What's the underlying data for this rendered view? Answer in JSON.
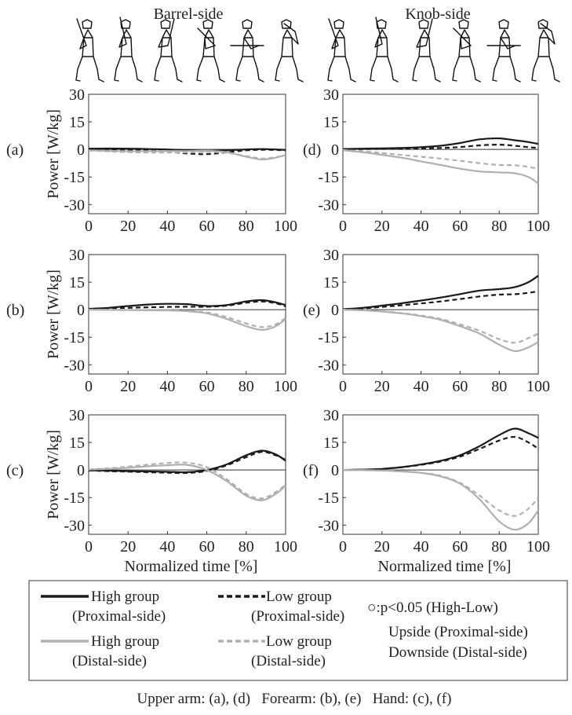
{
  "figure": {
    "column_titles": [
      "Barrel-side",
      "Knob-side"
    ],
    "footer": "Upper arm: (a), (d)   Forearm: (b), (e)   Hand: (c), (f)",
    "legend": {
      "items": [
        {
          "key": "high_prox",
          "line1": "High group",
          "line2": "(Proximal-side)",
          "color": "#1a1a1a",
          "dash": "solid"
        },
        {
          "key": "low_prox",
          "line1": "Low group",
          "line2": "(Proximal-side)",
          "color": "#1a1a1a",
          "dash": "dashed"
        },
        {
          "key": "high_dist",
          "line1": "High group",
          "line2": "(Distal-side)",
          "color": "#b0b0b0",
          "dash": "solid"
        },
        {
          "key": "low_dist",
          "line1": "Low group",
          "line2": "(Distal-side)",
          "color": "#b0b0b0",
          "dash": "dashed"
        }
      ],
      "sig_note": [
        "○:p<0.05 (High-Low)",
        "Upside (Proximal-side)",
        "Downside (Distal-side)"
      ]
    }
  },
  "chart_data": [
    {
      "panel": "(a)",
      "type": "line",
      "xlabel": "",
      "ylabel": "Power [W/kg]",
      "xlim": [
        0,
        100
      ],
      "ylim": [
        -35,
        30
      ],
      "xticks": [
        0,
        20,
        40,
        60,
        80,
        100
      ],
      "yticks": [
        30,
        15,
        0,
        -15,
        -30
      ],
      "x": [
        0,
        10,
        20,
        30,
        40,
        50,
        60,
        70,
        80,
        88,
        95,
        100
      ],
      "series": [
        {
          "name": "High group (Proximal-side)",
          "values": [
            0.4,
            0.5,
            0.4,
            0.2,
            0,
            -0.5,
            -0.8,
            -0.5,
            0,
            0.2,
            0,
            -0.3
          ]
        },
        {
          "name": "Low group (Proximal-side)",
          "values": [
            0.2,
            0.1,
            -0.2,
            -0.6,
            -1.2,
            -2.2,
            -2.6,
            -1.6,
            -0.5,
            -0.2,
            -0.3,
            -0.5
          ]
        },
        {
          "name": "High group (Distal-side)",
          "values": [
            -0.5,
            -0.8,
            -1,
            -1,
            -0.9,
            -0.9,
            -0.8,
            -1.5,
            -4,
            -5.5,
            -4.5,
            -3
          ]
        },
        {
          "name": "Low group (Distal-side)",
          "values": [
            -0.6,
            -1.1,
            -1.5,
            -1.7,
            -1.7,
            -1.6,
            -1.4,
            -1.8,
            -3.6,
            -5,
            -4.2,
            -3.2
          ]
        }
      ]
    },
    {
      "panel": "(b)",
      "type": "line",
      "xlabel": "",
      "ylabel": "Power [W/kg]",
      "xlim": [
        0,
        100
      ],
      "ylim": [
        -35,
        30
      ],
      "xticks": [
        0,
        20,
        40,
        60,
        80,
        100
      ],
      "yticks": [
        30,
        15,
        0,
        -15,
        -30
      ],
      "x": [
        0,
        10,
        20,
        30,
        40,
        50,
        60,
        70,
        80,
        88,
        95,
        100
      ],
      "series": [
        {
          "name": "High group (Proximal-side)",
          "values": [
            0.5,
            1,
            2,
            2.8,
            3.2,
            3,
            2,
            2.5,
            4.5,
            5.2,
            4,
            2.5
          ]
        },
        {
          "name": "Low group (Proximal-side)",
          "values": [
            0.3,
            0.6,
            1,
            1.3,
            1.5,
            1.6,
            1.6,
            2.2,
            3.8,
            4.5,
            3.5,
            1.8
          ]
        },
        {
          "name": "High group (Distal-side)",
          "values": [
            0,
            -0.1,
            -0.2,
            -0.3,
            -0.4,
            -0.8,
            -2,
            -5,
            -9,
            -11,
            -9,
            -5
          ]
        },
        {
          "name": "Low group (Distal-side)",
          "values": [
            0,
            0,
            -0.1,
            -0.2,
            -0.3,
            -0.6,
            -1.5,
            -4,
            -7.5,
            -9.5,
            -8,
            -4.5
          ]
        }
      ]
    },
    {
      "panel": "(c)",
      "type": "line",
      "xlabel": "Normalized time [%]",
      "ylabel": "Power [W/kg]",
      "xlim": [
        0,
        100
      ],
      "ylim": [
        -35,
        30
      ],
      "xticks": [
        0,
        20,
        40,
        60,
        80,
        100
      ],
      "yticks": [
        30,
        15,
        0,
        -15,
        -30
      ],
      "x": [
        0,
        10,
        20,
        30,
        40,
        50,
        60,
        70,
        80,
        88,
        95,
        100
      ],
      "series": [
        {
          "name": "High group (Proximal-side)",
          "values": [
            -0.2,
            -0.4,
            -0.6,
            -0.8,
            -1,
            -1.2,
            0,
            3,
            8,
            10.5,
            8.5,
            5
          ]
        },
        {
          "name": "Low group (Proximal-side)",
          "values": [
            -0.3,
            -0.6,
            -0.9,
            -1.2,
            -1.5,
            -1.6,
            -0.5,
            2.5,
            7,
            9.8,
            8,
            5.5
          ]
        },
        {
          "name": "High group (Distal-side)",
          "values": [
            0.2,
            0.6,
            1.2,
            2,
            2.6,
            2.8,
            0,
            -6,
            -14,
            -16.5,
            -13,
            -8.5
          ]
        },
        {
          "name": "Low group (Distal-side)",
          "values": [
            0.3,
            0.9,
            1.8,
            2.9,
            3.8,
            4,
            1.5,
            -5,
            -13,
            -15.5,
            -12,
            -8
          ]
        }
      ]
    },
    {
      "panel": "(d)",
      "type": "line",
      "xlabel": "",
      "ylabel": "",
      "xlim": [
        0,
        100
      ],
      "ylim": [
        -35,
        30
      ],
      "xticks": [
        0,
        20,
        40,
        60,
        80,
        100
      ],
      "yticks": [
        30,
        15,
        0,
        -15,
        -30
      ],
      "x": [
        0,
        10,
        20,
        30,
        40,
        50,
        60,
        70,
        80,
        88,
        95,
        100
      ],
      "series": [
        {
          "name": "High group (Proximal-side)",
          "values": [
            0.2,
            0.4,
            0.6,
            0.8,
            1.2,
            2,
            3.5,
            5.5,
            6,
            5,
            4,
            3
          ]
        },
        {
          "name": "Low group (Proximal-side)",
          "values": [
            0.1,
            0.2,
            0.3,
            0.4,
            0.5,
            0.8,
            1.3,
            2.2,
            2.6,
            2,
            1.2,
            0.8
          ]
        },
        {
          "name": "High group (Distal-side)",
          "values": [
            -0.5,
            -1.5,
            -3,
            -4.5,
            -6.5,
            -8.5,
            -10.5,
            -12,
            -12.5,
            -13,
            -15,
            -18.5
          ]
        },
        {
          "name": "Low group (Distal-side)",
          "values": [
            -0.3,
            -1,
            -2,
            -3,
            -4,
            -5,
            -6.2,
            -7.5,
            -8.5,
            -8.6,
            -9.5,
            -10.5
          ]
        }
      ]
    },
    {
      "panel": "(e)",
      "type": "line",
      "xlabel": "",
      "ylabel": "",
      "xlim": [
        0,
        100
      ],
      "ylim": [
        -35,
        30
      ],
      "xticks": [
        0,
        20,
        40,
        60,
        80,
        100
      ],
      "yticks": [
        30,
        15,
        0,
        -15,
        -30
      ],
      "x": [
        0,
        10,
        20,
        30,
        40,
        50,
        60,
        70,
        80,
        88,
        95,
        100
      ],
      "series": [
        {
          "name": "High group (Proximal-side)",
          "values": [
            0.3,
            1,
            2.2,
            3.5,
            5,
            6.6,
            8.5,
            10.4,
            11.2,
            12.3,
            15,
            18.5
          ]
        },
        {
          "name": "Low group (Proximal-side)",
          "values": [
            0.2,
            0.7,
            1.5,
            2.4,
            3.4,
            4.5,
            5.8,
            7.2,
            8.2,
            8.4,
            9.2,
            10
          ]
        },
        {
          "name": "High group (Distal-side)",
          "values": [
            0,
            -0.3,
            -1,
            -2,
            -3.5,
            -5.5,
            -9,
            -13,
            -19,
            -22.5,
            -20.5,
            -17.5
          ]
        },
        {
          "name": "Low group (Distal-side)",
          "values": [
            0,
            -0.3,
            -0.9,
            -1.8,
            -3.2,
            -5,
            -8,
            -11.5,
            -16,
            -18,
            -15.5,
            -13
          ]
        }
      ]
    },
    {
      "panel": "(f)",
      "type": "line",
      "xlabel": "Normalized time [%]",
      "ylabel": "",
      "xlim": [
        0,
        100
      ],
      "ylim": [
        -35,
        30
      ],
      "xticks": [
        0,
        20,
        40,
        60,
        80,
        100
      ],
      "yticks": [
        30,
        15,
        0,
        -15,
        -30
      ],
      "x": [
        0,
        10,
        20,
        30,
        40,
        50,
        60,
        70,
        80,
        88,
        95,
        100
      ],
      "series": [
        {
          "name": "High group (Proximal-side)",
          "values": [
            0,
            0.2,
            0.6,
            1.5,
            3,
            5,
            8,
            13,
            19,
            22.5,
            20,
            17.5
          ]
        },
        {
          "name": "Low group (Proximal-side)",
          "values": [
            0,
            0.2,
            0.6,
            1.5,
            2.8,
            4.6,
            7.3,
            11.5,
            16,
            18,
            15,
            11.5
          ]
        },
        {
          "name": "High group (Distal-side)",
          "values": [
            0,
            -0.1,
            -0.3,
            -0.8,
            -1.6,
            -3.5,
            -7.5,
            -16,
            -28,
            -32.5,
            -29,
            -22
          ]
        },
        {
          "name": "Low group (Distal-side)",
          "values": [
            0,
            -0.1,
            -0.3,
            -0.7,
            -1.5,
            -3.2,
            -7,
            -14,
            -22,
            -25,
            -21,
            -15
          ]
        }
      ]
    }
  ]
}
